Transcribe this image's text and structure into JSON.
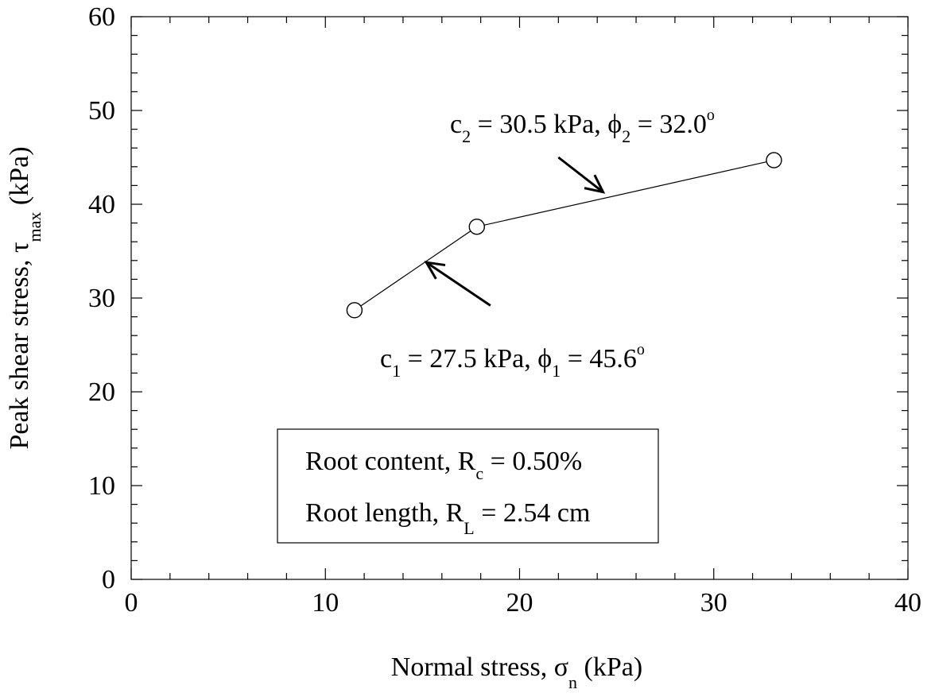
{
  "chart_data": {
    "type": "scatter",
    "xlabel": {
      "main": "Normal stress, σ",
      "sub": "n",
      "unit": " (kPa)"
    },
    "ylabel": {
      "main": "Peak shear stress, τ",
      "sub": "max",
      "unit": " (kPa)"
    },
    "xlim": [
      0,
      40
    ],
    "ylim": [
      0,
      60
    ],
    "x_ticks": [
      0,
      10,
      20,
      30,
      40
    ],
    "y_ticks": [
      0,
      10,
      20,
      30,
      40,
      50,
      60
    ],
    "x_tick_labels": [
      "0",
      "10",
      "20",
      "30",
      "40"
    ],
    "y_tick_labels": [
      "0",
      "10",
      "20",
      "30",
      "40",
      "50",
      "60"
    ],
    "x_minor_step": 2,
    "y_minor_step": 2,
    "grid": false,
    "series": [
      {
        "x": [
          11.5,
          17.8,
          33.1
        ],
        "y": [
          28.7,
          37.6,
          44.7
        ],
        "marker": "open-circle",
        "line": "solid"
      }
    ],
    "annotations": [
      {
        "c_symbol": "c",
        "c_sub": "1",
        "c_value": " = 27.5 kPa, ",
        "phi_symbol": "ϕ",
        "phi_sub": "1",
        "phi_value": " = 45.6",
        "phi_sup": "o",
        "arrow_tail": [
          18.5,
          29.2
        ],
        "arrow_head": [
          15.2,
          33.8
        ]
      },
      {
        "c_symbol": "c",
        "c_sub": "2",
        "c_value": " = 30.5 kPa, ",
        "phi_symbol": "ϕ",
        "phi_sub": "2",
        "phi_value": " = 32.0",
        "phi_sup": "o",
        "arrow_tail": [
          22.0,
          45.0
        ],
        "arrow_head": [
          24.3,
          41.3
        ]
      }
    ],
    "legend_box": {
      "line1": {
        "text": "Root content, R",
        "sub": "c",
        "value": " = 0.50%"
      },
      "line2": {
        "text": "Root length, R",
        "sub": "L",
        "value": " = 2.54 cm"
      }
    }
  }
}
